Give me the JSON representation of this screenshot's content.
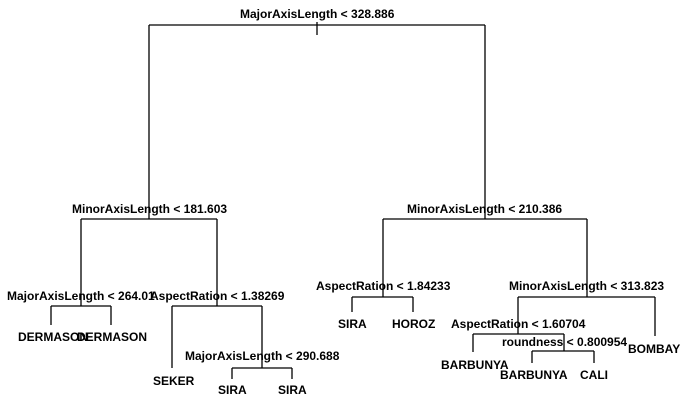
{
  "tree": {
    "splits": {
      "root": "MajorAxisLength < 328.886",
      "left": "MinorAxisLength < 181.603",
      "right": "MinorAxisLength < 210.386",
      "left_left": "MajorAxisLength < 264.01",
      "left_right": "AspectRation < 1.38269",
      "left_right_right": "MajorAxisLength < 290.688",
      "right_left": "AspectRation < 1.84233",
      "right_right": "MinorAxisLength < 313.823",
      "right_right_left": "AspectRation < 1.60704",
      "right_right_left_right": "roundness < 0.800954"
    },
    "leaves": {
      "l1": "DERMASON",
      "l2": "DERMASON",
      "l3": "SEKER",
      "l4": "SIRA",
      "l5": "SIRA",
      "l6": "SIRA",
      "l7": "HOROZ",
      "l8": "BARBUNYA",
      "l9": "BARBUNYA",
      "l10": "CALI",
      "l11": "BOMBAY"
    }
  }
}
